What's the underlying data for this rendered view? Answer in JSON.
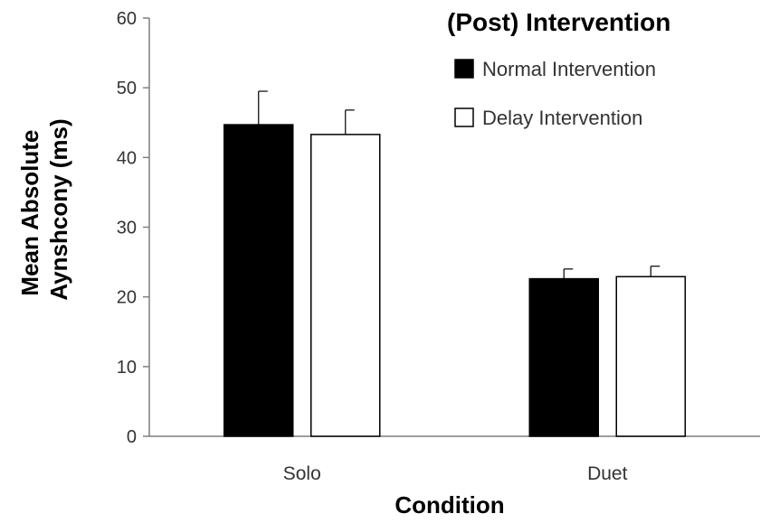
{
  "chart_data": {
    "type": "bar",
    "categories": [
      "Solo",
      "Duet"
    ],
    "series": [
      {
        "name": "Normal Intervention",
        "values": [
          44.7,
          22.6
        ],
        "errors": [
          4.8,
          1.4
        ],
        "fill": "#000000"
      },
      {
        "name": "Delay Intervention",
        "values": [
          43.3,
          22.9
        ],
        "errors": [
          3.5,
          1.5
        ],
        "fill": "#ffffff"
      }
    ],
    "xlabel": "Condition",
    "ylabel_lines": [
      "Mean Absolute",
      "Aynshcony (ms)"
    ],
    "ylim": [
      0,
      60
    ],
    "yticks": [
      "0",
      "10",
      "20",
      "30",
      "40",
      "50",
      "60"
    ],
    "legend_title": "(Post) Intervention",
    "legend_position": "top-right",
    "grid": false
  }
}
